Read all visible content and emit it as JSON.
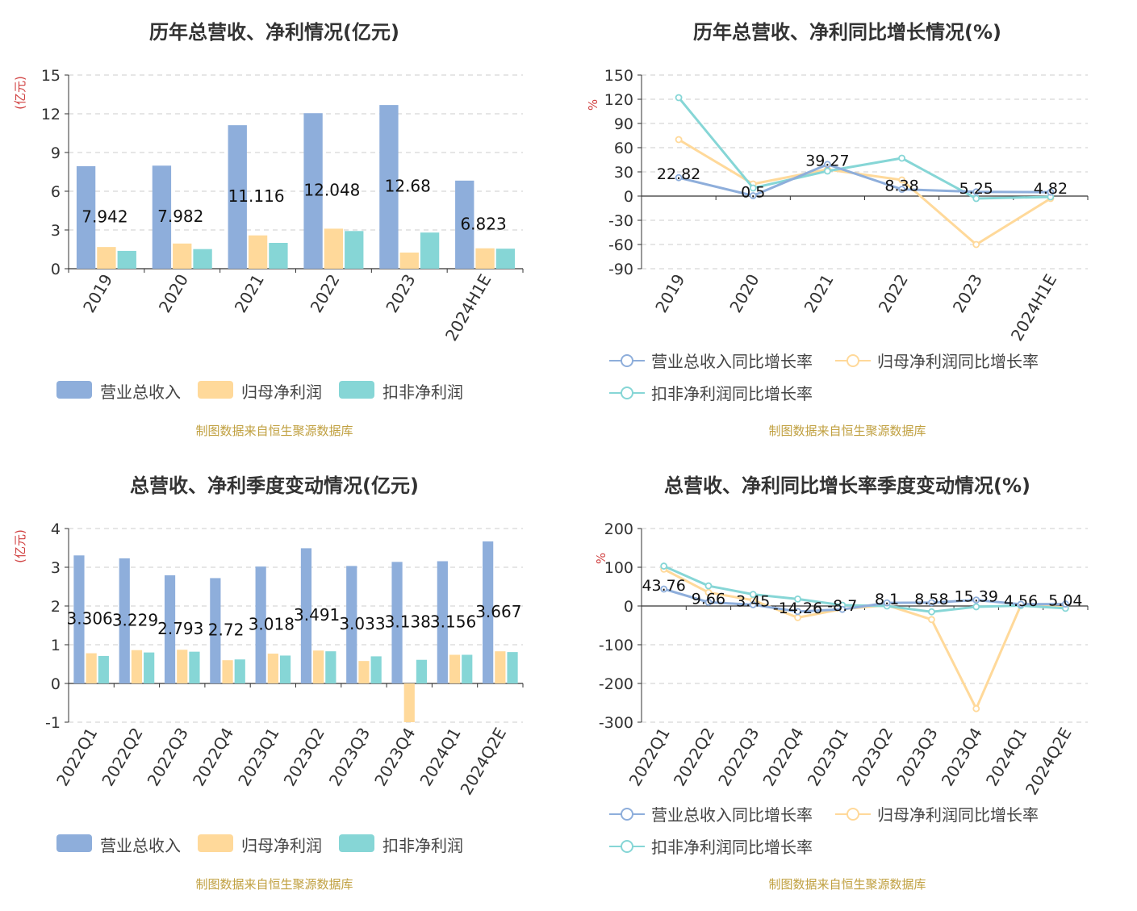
{
  "source_note": "制图数据来自恒生聚源数据库",
  "colors": {
    "revenue": "#8eaedb",
    "net_profit": "#ffd99a",
    "deducted": "#86d6d6",
    "line_rev": "#8eaedb",
    "line_np": "#ffd99a",
    "line_ded": "#86d6d6",
    "unit_red": "#d04040"
  },
  "chart_data": [
    {
      "id": "annual-bar",
      "type": "bar",
      "title": "历年总营收、净利情况(亿元)",
      "ylabel": "(亿元)",
      "ylim": [
        0,
        15
      ],
      "yticks": [
        0,
        3,
        6,
        9,
        12,
        15
      ],
      "categories": [
        "2019",
        "2020",
        "2021",
        "2022",
        "2023",
        "2024H1E"
      ],
      "series": [
        {
          "name": "营业总收入",
          "values": [
            7.942,
            7.982,
            11.116,
            12.048,
            12.68,
            6.823
          ]
        },
        {
          "name": "归母净利润",
          "values": [
            1.68,
            1.95,
            2.58,
            3.1,
            1.25,
            1.58
          ]
        },
        {
          "name": "扣非净利润",
          "values": [
            1.38,
            1.52,
            2.0,
            2.92,
            2.8,
            1.55
          ]
        }
      ],
      "data_labels": [
        "7.942",
        "7.982",
        "11.116",
        "12.048",
        "12.68",
        "6.823"
      ]
    },
    {
      "id": "annual-line",
      "type": "line",
      "title": "历年总营收、净利同比增长情况(%)",
      "ylabel": "%",
      "ylim": [
        -90,
        150
      ],
      "yticks": [
        -90,
        -60,
        -30,
        0,
        30,
        60,
        90,
        120,
        150
      ],
      "categories": [
        "2019",
        "2020",
        "2021",
        "2022",
        "2023",
        "2024H1E"
      ],
      "series": [
        {
          "name": "营业总收入同比增长率",
          "values": [
            22.82,
            0.5,
            39.27,
            8.38,
            5.25,
            4.82
          ]
        },
        {
          "name": "归母净利润同比增长率",
          "values": [
            70,
            15,
            33,
            20,
            -60,
            -3
          ]
        },
        {
          "name": "扣非净利润同比增长率",
          "values": [
            122,
            10,
            31,
            47,
            -3,
            -1
          ]
        }
      ],
      "data_labels": [
        "22.82",
        "0.5",
        "39.27",
        "8.38",
        "5.25",
        "4.82"
      ]
    },
    {
      "id": "quarter-bar",
      "type": "bar",
      "title": "总营收、净利季度变动情况(亿元)",
      "ylabel": "(亿元)",
      "ylim": [
        -1,
        4
      ],
      "yticks": [
        -1,
        0,
        1,
        2,
        3,
        4
      ],
      "categories": [
        "2022Q1",
        "2022Q2",
        "2022Q3",
        "2022Q4",
        "2023Q1",
        "2023Q2",
        "2023Q3",
        "2023Q4",
        "2024Q1",
        "2024Q2E"
      ],
      "series": [
        {
          "name": "营业总收入",
          "values": [
            3.306,
            3.229,
            2.793,
            2.72,
            3.018,
            3.491,
            3.033,
            3.138,
            3.156,
            3.667
          ]
        },
        {
          "name": "归母净利润",
          "values": [
            0.78,
            0.86,
            0.87,
            0.6,
            0.77,
            0.85,
            0.58,
            -1.0,
            0.74,
            0.83
          ]
        },
        {
          "name": "扣非净利润",
          "values": [
            0.71,
            0.8,
            0.82,
            0.62,
            0.72,
            0.83,
            0.7,
            0.61,
            0.74,
            0.81
          ]
        }
      ],
      "data_labels": [
        "3.306",
        "3.229",
        "2.793",
        "2.72",
        "3.018",
        "3.491",
        "3.033",
        "3.138",
        "3.156",
        "3.667"
      ]
    },
    {
      "id": "quarter-line",
      "type": "line",
      "title": "总营收、净利同比增长率季度变动情况(%)",
      "ylabel": "%",
      "ylim": [
        -300,
        200
      ],
      "yticks": [
        -300,
        -200,
        -100,
        0,
        100,
        200
      ],
      "categories": [
        "2022Q1",
        "2022Q2",
        "2022Q3",
        "2022Q4",
        "2023Q1",
        "2023Q2",
        "2023Q3",
        "2023Q4",
        "2024Q1",
        "2024Q2E"
      ],
      "series": [
        {
          "name": "营业总收入同比增长率",
          "values": [
            43.76,
            9.66,
            3.45,
            -14.26,
            -8.7,
            8.1,
            8.58,
            15.39,
            4.56,
            5.04
          ]
        },
        {
          "name": "归母净利润同比增长率",
          "values": [
            95,
            35,
            15,
            -30,
            -8,
            2,
            -35,
            -265,
            2,
            -4
          ]
        },
        {
          "name": "扣非净利润同比增长率",
          "values": [
            103,
            52,
            30,
            18,
            2,
            0,
            -15,
            -2,
            1,
            -6
          ]
        }
      ],
      "data_labels": [
        "43.76",
        "9.66",
        "3.45",
        "-14.26",
        "-8.7",
        "8.1",
        "8.58",
        "15.39",
        "4.56",
        "5.04"
      ]
    }
  ]
}
